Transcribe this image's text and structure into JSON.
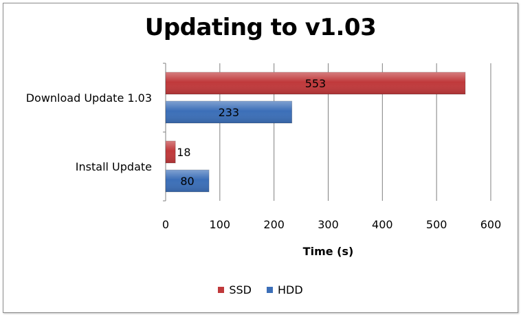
{
  "chart_data": {
    "type": "bar",
    "orientation": "horizontal",
    "title": "Updating to v1.03",
    "xlabel": "Time (s)",
    "ylabel": "",
    "categories": [
      "Download Update 1.03",
      "Install Update"
    ],
    "series": [
      {
        "name": "SSD",
        "color": "#c0393b",
        "values": [
          553,
          18
        ]
      },
      {
        "name": "HDD",
        "color": "#3c6fb8",
        "values": [
          233,
          80
        ]
      }
    ],
    "xlim": [
      0,
      600
    ],
    "xticks": [
      0,
      100,
      200,
      300,
      400,
      500,
      600
    ],
    "grid": "vertical",
    "legend": "bottom"
  }
}
